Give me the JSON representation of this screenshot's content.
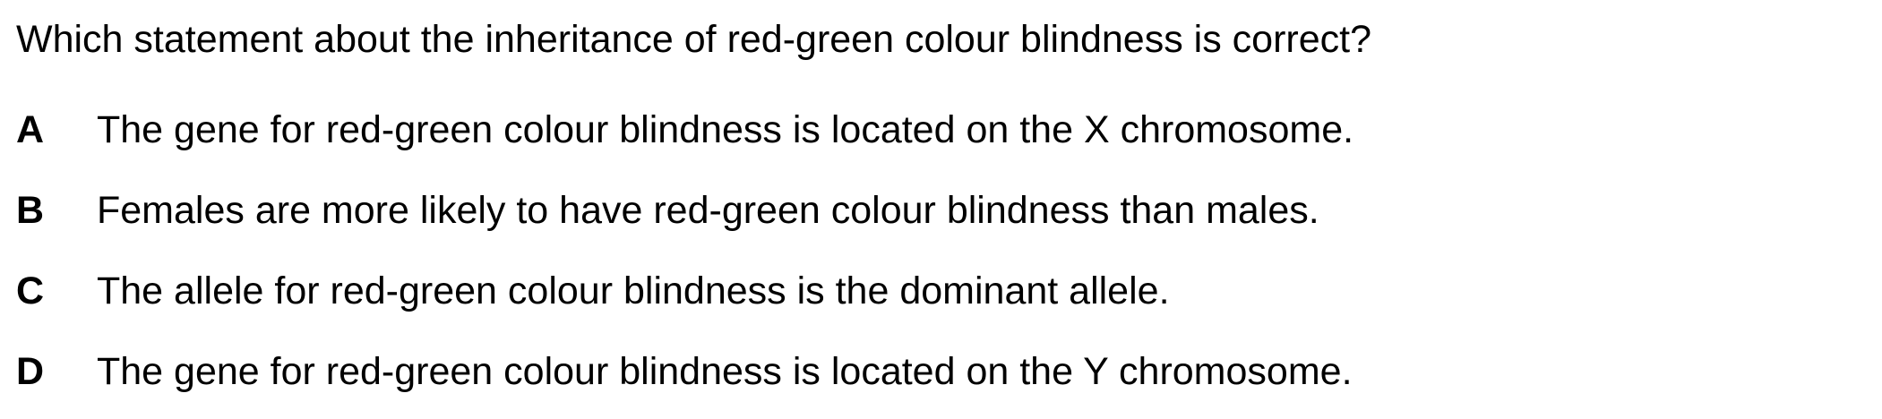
{
  "question": {
    "stem": "Which statement about the inheritance of red-green colour blindness is correct?"
  },
  "options": [
    {
      "letter": "A",
      "text": "The gene for red-green colour blindness is located on the X chromosome."
    },
    {
      "letter": "B",
      "text": "Females are more likely to have red-green colour blindness than males."
    },
    {
      "letter": "C",
      "text": "The allele for red-green colour blindness is the dominant allele."
    },
    {
      "letter": "D",
      "text": "The gene for red-green colour blindness is located on the Y chromosome."
    }
  ]
}
